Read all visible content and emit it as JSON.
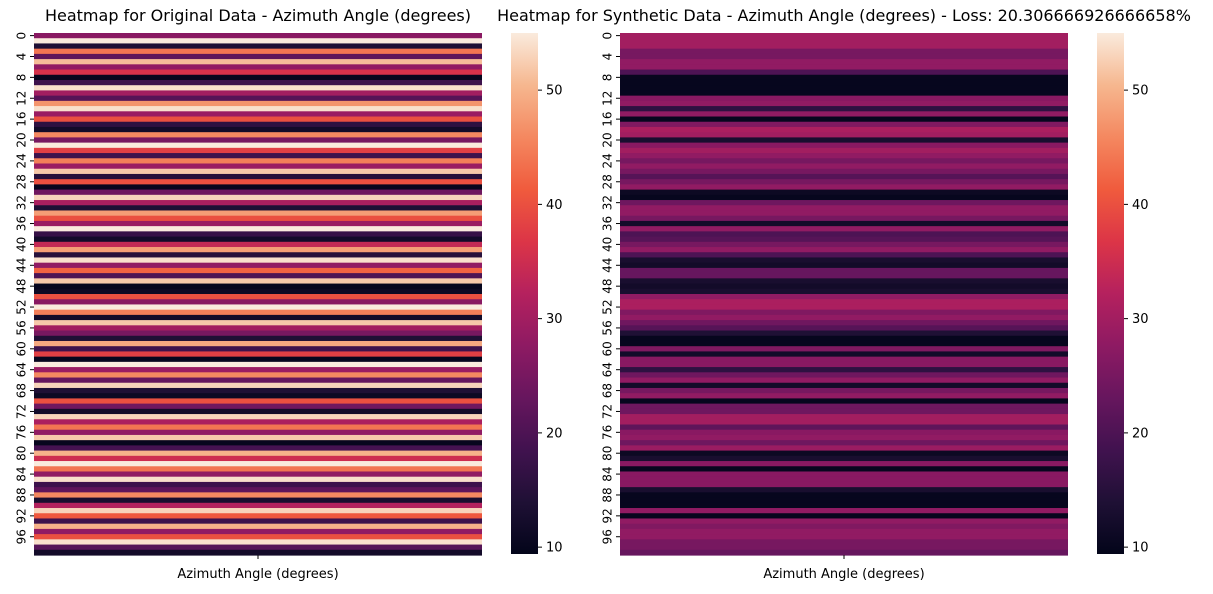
{
  "chart_data": [
    {
      "type": "heatmap",
      "title": "Heatmap for Original Data - Azimuth Angle (degrees)",
      "xlabel": "Azimuth Angle (degrees)",
      "ylabel": "",
      "row_tick_labels": [
        "0",
        "4",
        "8",
        "12",
        "16",
        "20",
        "24",
        "28",
        "32",
        "36",
        "40",
        "44",
        "48",
        "52",
        "56",
        "60",
        "64",
        "68",
        "72",
        "76",
        "80",
        "84",
        "88",
        "92",
        "96"
      ],
      "colorbar_ticks": [
        10,
        20,
        30,
        40,
        50
      ],
      "colorbar_range": [
        9.4,
        55
      ],
      "colormap": "rocket",
      "values": [
        27,
        55,
        14,
        44,
        22,
        51,
        28,
        36,
        10,
        18,
        54,
        30,
        21,
        47,
        54,
        29,
        40,
        16,
        12,
        46,
        25,
        55,
        38,
        18,
        45,
        29,
        52,
        15,
        40,
        10,
        24,
        53,
        31,
        14,
        48,
        40,
        29,
        55,
        17,
        12,
        34,
        48,
        15,
        54,
        28,
        42,
        20,
        52,
        10,
        11,
        40,
        27,
        55,
        45,
        12,
        52,
        30,
        25,
        14,
        49,
        18,
        38,
        10,
        55,
        29,
        46,
        23,
        53,
        14,
        11,
        40,
        24,
        12,
        53,
        31,
        44,
        28,
        52,
        10,
        19,
        50,
        35,
        55,
        44,
        28,
        54,
        18,
        22,
        46,
        13,
        32,
        53,
        41,
        18,
        50,
        28,
        40,
        54,
        21,
        12
      ]
    },
    {
      "type": "heatmap",
      "title": "Heatmap for Synthetic Data - Azimuth Angle (degrees) - Loss: 20.306666926666658%",
      "xlabel": "Azimuth Angle (degrees)",
      "ylabel": "",
      "row_tick_labels": [
        "0",
        "4",
        "8",
        "12",
        "16",
        "20",
        "24",
        "28",
        "32",
        "36",
        "40",
        "44",
        "48",
        "52",
        "56",
        "60",
        "64",
        "68",
        "72",
        "76",
        "80",
        "84",
        "88",
        "92",
        "96"
      ],
      "colorbar_ticks": [
        10,
        20,
        30,
        40,
        50
      ],
      "colorbar_range": [
        9.4,
        55
      ],
      "colormap": "rocket",
      "values": [
        30,
        30,
        30,
        25,
        25,
        28,
        28,
        20,
        10,
        10,
        10,
        10,
        27,
        28,
        16,
        28,
        10,
        26,
        31,
        30,
        13,
        27,
        30,
        28,
        25,
        28,
        25,
        21,
        25,
        28,
        11,
        10,
        24,
        28,
        28,
        25,
        12,
        28,
        20,
        21,
        25,
        28,
        20,
        13,
        12,
        23,
        23,
        13,
        12,
        13,
        28,
        31,
        31,
        26,
        28,
        24,
        21,
        14,
        10,
        10,
        26,
        12,
        27,
        27,
        16,
        24,
        28,
        12,
        25,
        28,
        10,
        24,
        24,
        30,
        30,
        22,
        27,
        28,
        24,
        29,
        11,
        13,
        27,
        10,
        27,
        27,
        27,
        13,
        10,
        10,
        10,
        28,
        10,
        28,
        26,
        28,
        28,
        25,
        25,
        23
      ]
    }
  ]
}
